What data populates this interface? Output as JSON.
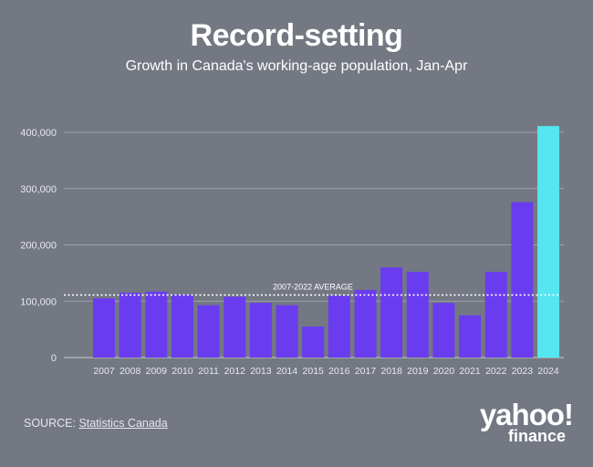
{
  "title": "Record-setting",
  "subtitle": "Growth in Canada's working-age population, Jan-Apr",
  "source_label": "SOURCE:",
  "source_name": "Statistics Canada",
  "logo": {
    "main": "yahoo!",
    "sub": "finance"
  },
  "colors": {
    "bar": "#6a3cf0",
    "highlight": "#55e6f0",
    "background": "#737882"
  },
  "chart_data": {
    "type": "bar",
    "title": "Record-setting",
    "subtitle": "Growth in Canada's working-age population, Jan-Apr",
    "categories": [
      "2007",
      "2008",
      "2009",
      "2010",
      "2011",
      "2012",
      "2013",
      "2014",
      "2015",
      "2016",
      "2017",
      "2018",
      "2019",
      "2020",
      "2021",
      "2022",
      "2023",
      "2024"
    ],
    "values": [
      105000,
      115000,
      117000,
      112000,
      93000,
      108000,
      97000,
      93000,
      55000,
      110000,
      120000,
      160000,
      152000,
      97000,
      75000,
      152000,
      276000,
      411000
    ],
    "highlight_category": "2024",
    "ylim": [
      0,
      400000
    ],
    "yticks": [
      0,
      100000,
      200000,
      300000,
      400000
    ],
    "ytick_labels": [
      "0",
      "100,000",
      "200,000",
      "300,000",
      "400,000"
    ],
    "reference_line": {
      "label": "2007-2022 AVERAGE",
      "value": 111000
    },
    "xlabel": "",
    "ylabel": "",
    "grid": true
  }
}
